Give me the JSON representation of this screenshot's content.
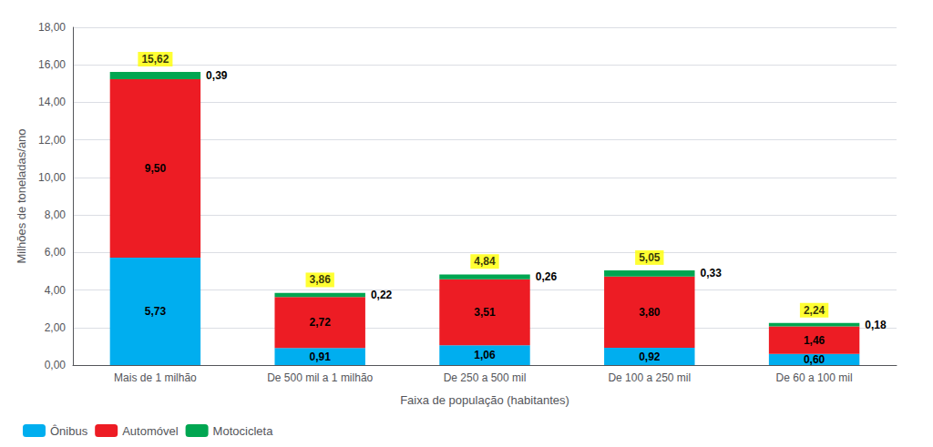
{
  "chart_data": {
    "type": "bar",
    "stacked": true,
    "categories": [
      "Mais de 1 milhão",
      "De 500 mil a 1 milhão",
      "De 250 a 500 mil",
      "De 100 a 250 mil",
      "De 60 a 100 mil"
    ],
    "series": [
      {
        "name": "Ônibus",
        "color": "#00AEEF",
        "values": [
          5.73,
          0.91,
          1.06,
          0.92,
          0.6
        ],
        "value_labels": [
          "5,73",
          "0,91",
          "1,06",
          "0,92",
          "0,60"
        ]
      },
      {
        "name": "Automóvel",
        "color": "#ED1C24",
        "values": [
          9.5,
          2.72,
          3.51,
          3.8,
          1.46
        ],
        "value_labels": [
          "9,50",
          "2,72",
          "3,51",
          "3,80",
          "1,46"
        ]
      },
      {
        "name": "Motocicleta",
        "color": "#00A651",
        "values": [
          0.39,
          0.22,
          0.26,
          0.33,
          0.18
        ],
        "value_labels": [
          "0,39",
          "0,22",
          "0,26",
          "0,33",
          "0,18"
        ]
      }
    ],
    "totals": [
      15.62,
      3.86,
      4.84,
      5.05,
      2.24
    ],
    "total_labels": [
      "15,62",
      "3,86",
      "4,84",
      "5,05",
      "2,24"
    ],
    "total_label_color": "#FFFF00",
    "xlabel": "Faixa de população (habitantes)",
    "ylabel": "Milhões de toneladas/ano",
    "ylim": [
      0,
      18
    ],
    "yticks": [
      {
        "value": 0,
        "label": "0,00"
      },
      {
        "value": 2,
        "label": "2,00"
      },
      {
        "value": 4,
        "label": "4,00"
      },
      {
        "value": 6,
        "label": "6,00"
      },
      {
        "value": 8,
        "label": "8,00"
      },
      {
        "value": 10,
        "label": "10,00"
      },
      {
        "value": 12,
        "label": "12,00"
      },
      {
        "value": 14,
        "label": "14,00"
      },
      {
        "value": 16,
        "label": "16,00"
      },
      {
        "value": 18,
        "label": "18,00"
      }
    ],
    "grid": true,
    "legend": "lower left",
    "data_labels": true
  }
}
